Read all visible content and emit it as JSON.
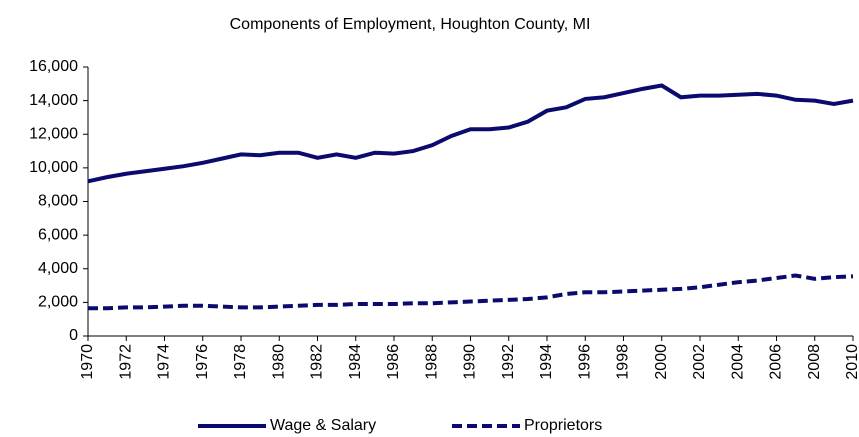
{
  "chart_data": {
    "type": "line",
    "title": "Components of Employment, Houghton County, MI",
    "x": [
      1970,
      1971,
      1972,
      1973,
      1974,
      1975,
      1976,
      1977,
      1978,
      1979,
      1980,
      1981,
      1982,
      1983,
      1984,
      1985,
      1986,
      1987,
      1988,
      1989,
      1990,
      1991,
      1992,
      1993,
      1994,
      1995,
      1996,
      1997,
      1998,
      1999,
      2000,
      2001,
      2002,
      2003,
      2004,
      2005,
      2006,
      2007,
      2008,
      2009,
      2010
    ],
    "series": [
      {
        "name": "Wage & Salary",
        "color": "#0b0b6f",
        "style": "solid",
        "values": [
          9200,
          9450,
          9650,
          9800,
          9950,
          10100,
          10300,
          10550,
          10800,
          10750,
          10900,
          10900,
          10600,
          10800,
          10600,
          10900,
          10850,
          11000,
          11350,
          11900,
          12300,
          12300,
          12400,
          12750,
          13400,
          13600,
          14100,
          14200,
          14450,
          14700,
          14900,
          14200,
          14300,
          14300,
          14350,
          14400,
          14300,
          14050,
          14000,
          13800,
          14000
        ]
      },
      {
        "name": "Proprietors",
        "color": "#0b0b6f",
        "style": "dashed",
        "values": [
          1650,
          1650,
          1700,
          1700,
          1750,
          1800,
          1800,
          1750,
          1700,
          1700,
          1750,
          1800,
          1850,
          1850,
          1900,
          1900,
          1900,
          1950,
          1950,
          2000,
          2050,
          2100,
          2150,
          2200,
          2300,
          2500,
          2600,
          2600,
          2650,
          2700,
          2750,
          2800,
          2900,
          3050,
          3200,
          3300,
          3450,
          3600,
          3400,
          3500,
          3550
        ]
      }
    ],
    "xlim": [
      1970,
      2010
    ],
    "xticks": [
      1970,
      1972,
      1974,
      1976,
      1978,
      1980,
      1982,
      1984,
      1986,
      1988,
      1990,
      1992,
      1994,
      1996,
      1998,
      2000,
      2002,
      2004,
      2006,
      2008,
      2010
    ],
    "ylim": [
      0,
      16000
    ],
    "yticks": [
      0,
      {
        "value": 2000,
        "label": "2,000"
      },
      {
        "value": 4000,
        "label": "4,000"
      },
      {
        "value": 6000,
        "label": "6,000"
      },
      {
        "value": 8000,
        "label": "8,000"
      },
      {
        "value": 10000,
        "label": "10,000"
      },
      {
        "value": 12000,
        "label": "12,000"
      },
      {
        "value": 14000,
        "label": "14,000"
      },
      {
        "value": 16000,
        "label": "16,000"
      }
    ],
    "legend": "bottom"
  }
}
